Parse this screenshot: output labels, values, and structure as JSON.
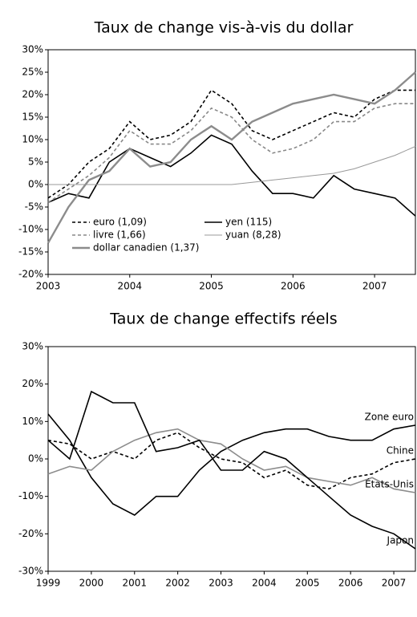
{
  "chart_data": [
    {
      "type": "line",
      "title": "Taux de change vis-à-vis du dollar",
      "x": [
        2003,
        2003.25,
        2003.5,
        2003.75,
        2004,
        2004.25,
        2004.5,
        2004.75,
        2005,
        2005.25,
        2005.5,
        2005.75,
        2006,
        2006.25,
        2006.5,
        2006.75,
        2007,
        2007.25,
        2007.5
      ],
      "xlim": [
        2003,
        2007.5
      ],
      "xticks": [
        2003,
        2004,
        2005,
        2006,
        2007
      ],
      "ylim": [
        -20,
        30
      ],
      "yticks": [
        {
          "value": -20,
          "label": "-20%"
        },
        {
          "value": -15,
          "label": "-15%"
        },
        {
          "value": -10,
          "label": "-10%"
        },
        {
          "value": -5,
          "label": "-5%"
        },
        {
          "value": 0,
          "label": "0%"
        },
        {
          "value": 5,
          "label": "5%"
        },
        {
          "value": 10,
          "label": "10%"
        },
        {
          "value": 15,
          "label": "15%"
        },
        {
          "value": 20,
          "label": "20%"
        },
        {
          "value": 25,
          "label": "25%"
        },
        {
          "value": 30,
          "label": "30%"
        }
      ],
      "legend": "lower left",
      "series": [
        {
          "name": "euro (1,09)",
          "color": "#000000",
          "line_style": "dashed",
          "weight": "normal",
          "values": [
            -3,
            0,
            5,
            8,
            14,
            10,
            11,
            14,
            21,
            18,
            12,
            10,
            12,
            14,
            16,
            15,
            19,
            21,
            21
          ]
        },
        {
          "name": "yen (115)",
          "color": "#000000",
          "line_style": "solid",
          "weight": "normal",
          "values": [
            -4,
            -2,
            -3,
            5,
            8,
            6,
            4,
            7,
            11,
            9,
            3,
            -2,
            -2,
            -3,
            2,
            -1,
            -2,
            -3,
            -7
          ]
        },
        {
          "name": "livre (1,66)",
          "color": "#888888",
          "line_style": "dashed",
          "weight": "normal",
          "values": [
            -4,
            -1,
            2,
            6,
            12,
            9,
            9,
            12,
            17,
            15,
            10,
            7,
            8,
            10,
            14,
            14,
            17,
            18,
            18
          ]
        },
        {
          "name": "yuan (8,28)",
          "color": "#999999",
          "line_style": "solid",
          "weight": "thin",
          "values": [
            0,
            0,
            0,
            0,
            0,
            0,
            0,
            0,
            0,
            0,
            0.5,
            1,
            1.5,
            2,
            2.5,
            3.5,
            5,
            6.5,
            8.5
          ]
        },
        {
          "name": "dollar canadien (1,37)",
          "color": "#8c8c8c",
          "line_style": "solid",
          "weight": "heavy",
          "values": [
            -13,
            -5,
            1,
            3,
            8,
            4,
            5,
            10,
            13,
            10,
            14,
            16,
            18,
            19,
            20,
            19,
            18,
            21,
            25
          ]
        }
      ]
    },
    {
      "type": "line",
      "title": "Taux de change effectifs réels",
      "x": [
        1999,
        1999.5,
        2000,
        2000.5,
        2001,
        2001.5,
        2002,
        2002.5,
        2003,
        2003.5,
        2004,
        2004.5,
        2005,
        2005.5,
        2006,
        2006.5,
        2007,
        2007.5
      ],
      "xlim": [
        1999,
        2007.5
      ],
      "xticks": [
        1999,
        2000,
        2001,
        2002,
        2003,
        2004,
        2005,
        2006,
        2007
      ],
      "ylim": [
        -30,
        30
      ],
      "yticks": [
        {
          "value": -30,
          "label": "-30%"
        },
        {
          "value": -20,
          "label": "-20%"
        },
        {
          "value": -10,
          "label": "-10%"
        },
        {
          "value": 0,
          "label": "0%"
        },
        {
          "value": 10,
          "label": "10%"
        },
        {
          "value": 20,
          "label": "20%"
        },
        {
          "value": 30,
          "label": "30%"
        }
      ],
      "legend": "line end",
      "series": [
        {
          "name": "Zone euro",
          "color": "#000000",
          "line_style": "solid",
          "weight": "normal",
          "values": [
            12,
            5,
            -5,
            -12,
            -15,
            -10,
            -10,
            -3,
            2,
            5,
            7,
            8,
            8,
            6,
            5,
            5,
            8,
            9
          ]
        },
        {
          "name": "Chine",
          "color": "#000000",
          "line_style": "dashed",
          "weight": "normal",
          "values": [
            5,
            4,
            0,
            2,
            0,
            5,
            7,
            3,
            0,
            -1,
            -5,
            -3,
            -7,
            -8,
            -5,
            -4,
            -1,
            0
          ]
        },
        {
          "name": "États-Unis",
          "color": "#8c8c8c",
          "line_style": "solid",
          "weight": "normal",
          "values": [
            -4,
            -2,
            -3,
            2,
            5,
            7,
            8,
            5,
            4,
            0,
            -3,
            -2,
            -5,
            -6,
            -7,
            -5,
            -8,
            -9
          ]
        },
        {
          "name": "Japon",
          "color": "#000000",
          "line_style": "solid",
          "weight": "normal",
          "values": [
            5,
            0,
            18,
            15,
            15,
            2,
            3,
            5,
            -3,
            -3,
            2,
            0,
            -5,
            -10,
            -15,
            -18,
            -20,
            -24
          ]
        }
      ]
    }
  ]
}
